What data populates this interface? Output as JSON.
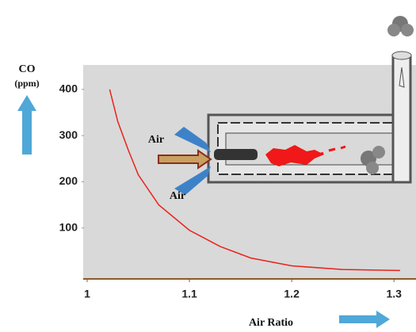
{
  "chart_data": {
    "type": "line",
    "y_label": [
      "CO",
      "(ppm)"
    ],
    "x_label": "Air Ratio",
    "annotations": [
      "Air",
      "Air"
    ],
    "x": [
      1.022,
      1.03,
      1.04,
      1.05,
      1.07,
      1.1,
      1.13,
      1.16,
      1.2,
      1.25,
      1.306
    ],
    "series": [
      {
        "color": "#e8231b",
        "values": [
          400,
          330,
          270,
          215,
          150,
          95,
          60,
          35,
          18,
          10,
          8
        ]
      }
    ],
    "xlim": [
      1,
      1.32
    ],
    "ylim": [
      0,
      410
    ],
    "xticks": [
      1,
      1.1,
      1.2,
      1.3
    ],
    "yticks": [
      100,
      200,
      300,
      400
    ]
  }
}
